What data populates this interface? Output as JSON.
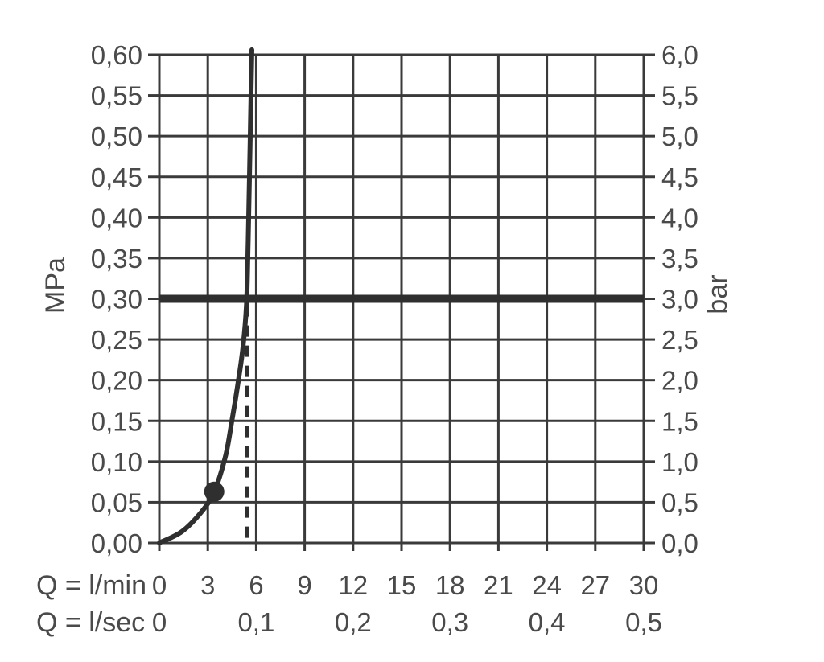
{
  "chart_data": {
    "type": "line",
    "title": "",
    "grid": true,
    "legend": "none",
    "axes": {
      "left": {
        "unit_label": "MPa",
        "range": [
          0,
          0.6
        ],
        "tick_values": [
          0.6,
          0.55,
          0.5,
          0.45,
          0.4,
          0.35,
          0.3,
          0.25,
          0.2,
          0.15,
          0.1,
          0.05,
          0.0
        ],
        "tick_labels": [
          "0,60",
          "0,55",
          "0,50",
          "0,45",
          "0,40",
          "0,35",
          "0,30",
          "0,25",
          "0,20",
          "0,15",
          "0,10",
          "0,05",
          "0,00"
        ]
      },
      "right": {
        "unit_label": "bar",
        "range": [
          0,
          6.0
        ],
        "tick_values": [
          6.0,
          5.5,
          5.0,
          4.5,
          4.0,
          3.5,
          3.0,
          2.5,
          2.0,
          1.5,
          1.0,
          0.5,
          0.0
        ],
        "tick_labels": [
          "6,0",
          "5,5",
          "5,0",
          "4,5",
          "4,0",
          "3,5",
          "3,0",
          "2,5",
          "2,0",
          "1,5",
          "1,0",
          "0,5",
          "0,0"
        ]
      },
      "bottom_lmin": {
        "unit_label": "Q = l/min",
        "range": [
          0,
          30
        ],
        "tick_values": [
          0,
          3,
          6,
          9,
          12,
          15,
          18,
          21,
          24,
          27,
          30
        ],
        "tick_labels": [
          "0",
          "3",
          "6",
          "9",
          "12",
          "15",
          "18",
          "21",
          "24",
          "27",
          "30"
        ]
      },
      "bottom_lsec": {
        "unit_label": "Q = l/sec",
        "ticks": [
          {
            "value": 0,
            "label": "0"
          },
          {
            "value": 6,
            "label": "0,1"
          },
          {
            "value": 12,
            "label": "0,2"
          },
          {
            "value": 18,
            "label": "0,3"
          },
          {
            "value": 24,
            "label": "0,4"
          },
          {
            "value": 30,
            "label": "0,5"
          }
        ]
      }
    },
    "series": [
      {
        "name": "flow-pressure-curve",
        "x_unit": "l/min",
        "y_unit": "MPa",
        "points": [
          [
            0,
            0
          ],
          [
            1.4,
            0.014
          ],
          [
            2.6,
            0.038
          ],
          [
            3.4,
            0.063
          ],
          [
            4.1,
            0.107
          ],
          [
            4.5,
            0.151
          ],
          [
            4.9,
            0.2
          ],
          [
            5.2,
            0.244
          ],
          [
            5.4,
            0.295
          ],
          [
            5.5,
            0.37
          ],
          [
            5.62,
            0.49
          ],
          [
            5.73,
            0.606
          ]
        ]
      }
    ],
    "marker_point": {
      "x_lmin": 3.4,
      "y_mpa": 0.063
    },
    "reference_line": {
      "y_mpa": 0.3,
      "y_bar": 3.0
    },
    "dashed_guide": {
      "x_lmin": 5.43,
      "from_mpa": 0.292,
      "to_mpa": 0
    },
    "colors": {
      "grid_line": "#3a3a3a",
      "curve": "#2f2f2f",
      "reference_line": "#2f2f2f",
      "text": "#4a4a4a",
      "background": "#ffffff"
    }
  }
}
